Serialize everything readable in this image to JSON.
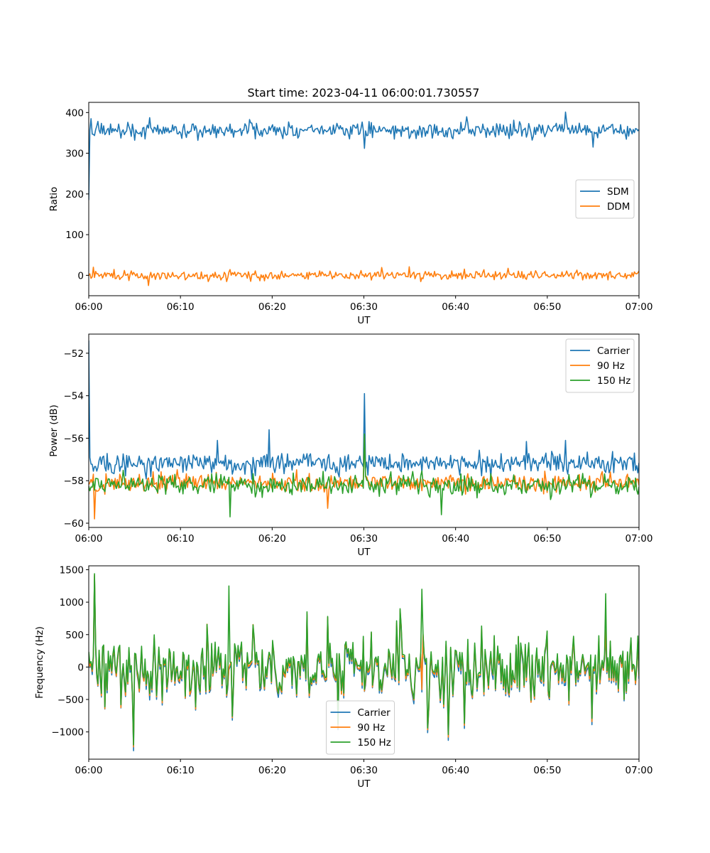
{
  "chart_data": [
    {
      "type": "line",
      "title": "Start time: 2023-04-11 06:00:01.730557",
      "xlabel": "UT",
      "ylabel": "Ratio",
      "xlim": [
        "06:00",
        "07:00"
      ],
      "xticks": [
        "06:00",
        "06:10",
        "06:20",
        "06:30",
        "06:40",
        "06:50",
        "07:00"
      ],
      "ylim": [
        -50,
        425
      ],
      "yticks": [
        0,
        100,
        200,
        300,
        400
      ],
      "legend_position": "center-right",
      "series": [
        {
          "name": "SDM",
          "color": "#1f77b4",
          "mean": 356,
          "noise": 14,
          "spikes": [
            [
              0,
              185
            ],
            [
              0.3,
              385
            ],
            [
              52,
              401
            ],
            [
              30,
              312
            ],
            [
              55,
              315
            ]
          ]
        },
        {
          "name": "DDM",
          "color": "#ff7f0e",
          "mean": 0,
          "noise": 8,
          "spikes": [
            [
              6.5,
              -25
            ],
            [
              0.5,
              20
            ],
            [
              35,
              21
            ]
          ]
        }
      ]
    },
    {
      "type": "line",
      "xlabel": "UT",
      "ylabel": "Power (dB)",
      "xlim": [
        "06:00",
        "07:00"
      ],
      "xticks": [
        "06:00",
        "06:10",
        "06:20",
        "06:30",
        "06:40",
        "06:50",
        "07:00"
      ],
      "ylim": [
        -60.2,
        -51.1
      ],
      "yticks": [
        -60,
        -58,
        -56,
        -54,
        -52
      ],
      "legend_position": "top-right",
      "series": [
        {
          "name": "Carrier",
          "color": "#1f77b4",
          "mean": -57.2,
          "noise": 0.35,
          "spikes": [
            [
              0,
              -51.4
            ],
            [
              30,
              -53.9
            ],
            [
              19.7,
              -55.6
            ],
            [
              14,
              -56.1
            ],
            [
              52,
              -56.1
            ]
          ]
        },
        {
          "name": "90 Hz",
          "color": "#ff7f0e",
          "mean": -58.1,
          "noise": 0.3,
          "spikes": [
            [
              0.6,
              -59.8
            ],
            [
              30,
              -55.9
            ],
            [
              26,
              -59.3
            ]
          ]
        },
        {
          "name": "150 Hz",
          "color": "#2ca02c",
          "mean": -58.2,
          "noise": 0.35,
          "spikes": [
            [
              15.4,
              -59.7
            ],
            [
              38.5,
              -59.6
            ],
            [
              30,
              -55.8
            ]
          ]
        }
      ]
    },
    {
      "type": "line",
      "xlabel": "UT",
      "ylabel": "Frequency (Hz)",
      "xlim": [
        "06:00",
        "07:00"
      ],
      "xticks": [
        "06:00",
        "06:10",
        "06:20",
        "06:30",
        "06:40",
        "06:50",
        "07:00"
      ],
      "ylim": [
        -1420,
        1560
      ],
      "yticks": [
        -1000,
        -500,
        0,
        500,
        1000,
        1500
      ],
      "legend_position": "lower-center",
      "series": [
        {
          "name": "Carrier",
          "color": "#1f77b4",
          "offset": -60,
          "spikes": [
            [
              4.9,
              -1290
            ],
            [
              39.2,
              -1130
            ],
            [
              0.6,
              1400
            ]
          ]
        },
        {
          "name": "90 Hz",
          "color": "#ff7f0e",
          "offset": -30,
          "spikes": [
            [
              4.9,
              -1230
            ],
            [
              39.2,
              -1080
            ],
            [
              0.6,
              1420
            ]
          ]
        },
        {
          "name": "150 Hz",
          "color": "#2ca02c",
          "offset": 0,
          "spikes": [
            [
              4.9,
              -1200
            ],
            [
              39.2,
              -1040
            ],
            [
              0.6,
              1440
            ],
            [
              15.3,
              1250
            ],
            [
              36.3,
              1200
            ],
            [
              56.4,
              1130
            ]
          ]
        }
      ]
    }
  ]
}
